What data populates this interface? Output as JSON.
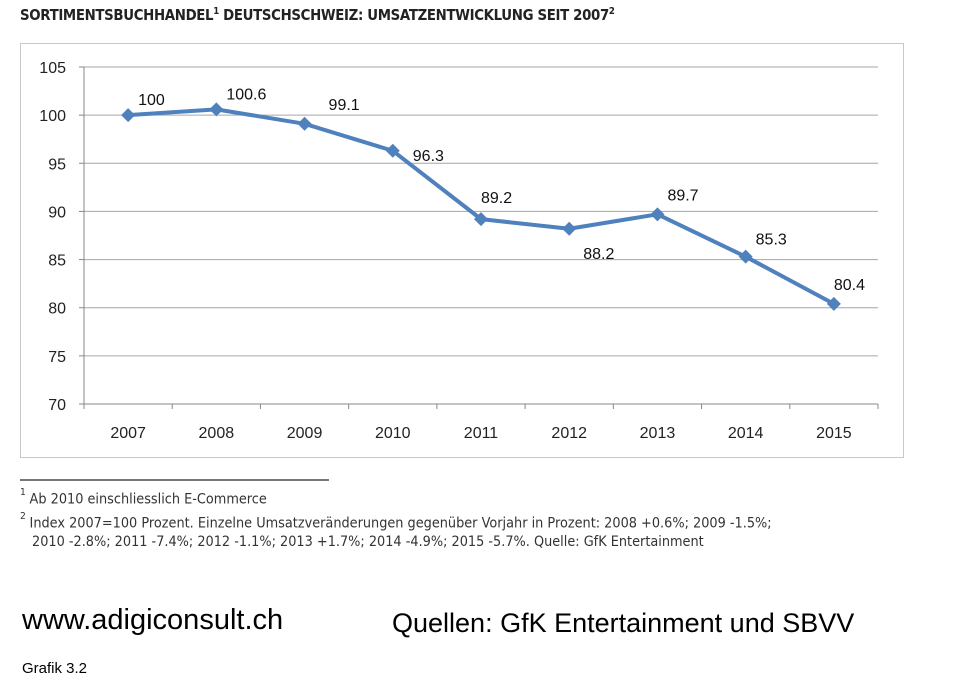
{
  "chart_data": {
    "type": "line",
    "title": "SORTIMENTSBUCHHANDEL",
    "title_sup1": "1",
    "title_rest": " DEUTSCHSCHWEIZ: UMSATZENTWICKLUNG SEIT 2007",
    "title_sup2": "2",
    "categories": [
      "2007",
      "2008",
      "2009",
      "2010",
      "2011",
      "2012",
      "2013",
      "2014",
      "2015"
    ],
    "values": [
      100,
      100.6,
      99.1,
      96.3,
      89.2,
      88.2,
      89.7,
      85.3,
      80.4
    ],
    "data_labels": [
      "100",
      "100.6",
      "99.1",
      "96.3",
      "89.2",
      "88.2",
      "89.7",
      "85.3",
      "80.4"
    ],
    "ylim": [
      70,
      105
    ],
    "yticks": [
      "70",
      "75",
      "80",
      "85",
      "90",
      "95",
      "100",
      "105"
    ],
    "grid": true,
    "line_color": "#4f81bd",
    "grid_color": "#a6a6a6",
    "marker": "diamond"
  },
  "footnotes": [
    {
      "mark": "1",
      "lines": [
        "Ab 2010 einschliesslich E-Commerce"
      ]
    },
    {
      "mark": "2",
      "lines": [
        "Index 2007=100 Prozent. Einzelne Umsatzveränderungen gegenüber Vorjahr in Prozent: 2008 +0.6%; 2009 -1.5%;",
        "2010 -2.8%; 2011 -7.4%; 2012 -1.1%; 2013 +1.7%; 2014 -4.9%; 2015 -5.7%. Quelle: GfK Entertainment"
      ]
    }
  ],
  "website": "www.adigiconsult.ch",
  "sources": "Quellen: GfK Entertainment und SBVV",
  "caption": "Grafik 3.2"
}
